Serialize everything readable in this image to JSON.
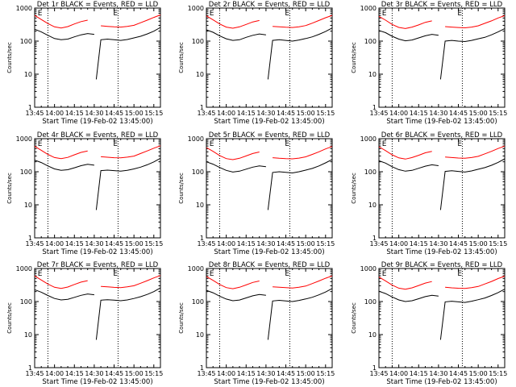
{
  "colors": {
    "events": "#000000",
    "lld": "#ff0000",
    "axes": "#000000",
    "background": "#ffffff"
  },
  "figure": {
    "xlabel": "Start Time (19-Feb-02 13:45:00)",
    "ylabel": "Counts/sec",
    "x_tick_labels": [
      "13:45",
      "14:00",
      "14:15",
      "14:30",
      "14:45",
      "15:00",
      "15:15"
    ],
    "y_tick_labels": [
      "1",
      "10",
      "100",
      "1000"
    ],
    "marker_left": "E",
    "marker_right": "E"
  },
  "chart_data": [
    {
      "type": "line",
      "title": "Det 1r BLACK = Events, RED = LLD",
      "x_unit": "minutes since 13:45",
      "xlim": [
        0,
        95
      ],
      "ylim": [
        1,
        1000
      ],
      "y_scale": "log",
      "grid": false,
      "legend": "in title",
      "vlines": [
        10,
        63
      ],
      "event_lines": [
        4,
        61
      ],
      "series": [
        {
          "name": "Events",
          "x": [
            0,
            5,
            10,
            15,
            20,
            25,
            30,
            35,
            40,
            45,
            46,
            46.5,
            50,
            55,
            60,
            65,
            70,
            75,
            80,
            85,
            90,
            95
          ],
          "y": [
            230,
            190,
            150,
            120,
            110,
            115,
            135,
            155,
            170,
            160,
            null,
            7,
            110,
            115,
            110,
            105,
            112,
            125,
            140,
            165,
            200,
            260
          ]
        },
        {
          "name": "LLD",
          "x": [
            0,
            5,
            10,
            15,
            20,
            25,
            30,
            35,
            40,
            46,
            50,
            55,
            60,
            65,
            70,
            75,
            80,
            85,
            90,
            95
          ],
          "y": [
            600,
            450,
            340,
            270,
            250,
            275,
            330,
            390,
            430,
            null,
            290,
            280,
            270,
            265,
            280,
            300,
            360,
            430,
            520,
            620
          ]
        }
      ]
    },
    {
      "type": "line",
      "title": "Det 2r BLACK = Events, RED = LLD",
      "x_unit": "minutes since 13:45",
      "xlim": [
        0,
        95
      ],
      "ylim": [
        1,
        1000
      ],
      "y_scale": "log",
      "grid": false,
      "legend": "in title",
      "vlines": [
        10,
        63
      ],
      "event_lines": [
        4,
        61
      ],
      "series": [
        {
          "name": "Events",
          "x": [
            0,
            5,
            10,
            15,
            20,
            25,
            30,
            35,
            40,
            45,
            46,
            46.5,
            50,
            55,
            60,
            65,
            70,
            75,
            80,
            85,
            90,
            95
          ],
          "y": [
            220,
            185,
            145,
            118,
            105,
            110,
            130,
            150,
            165,
            155,
            null,
            7,
            105,
            110,
            105,
            100,
            108,
            120,
            135,
            160,
            195,
            250
          ]
        },
        {
          "name": "LLD",
          "x": [
            0,
            5,
            10,
            15,
            20,
            25,
            30,
            35,
            40,
            46,
            50,
            55,
            60,
            65,
            70,
            75,
            80,
            85,
            90,
            95
          ],
          "y": [
            580,
            440,
            330,
            265,
            245,
            270,
            320,
            380,
            420,
            null,
            280,
            270,
            262,
            258,
            270,
            295,
            350,
            420,
            510,
            600
          ]
        }
      ]
    },
    {
      "type": "line",
      "title": "Det 3r BLACK = Events, RED = LLD",
      "x_unit": "minutes since 13:45",
      "xlim": [
        0,
        95
      ],
      "ylim": [
        1,
        1000
      ],
      "y_scale": "log",
      "grid": false,
      "legend": "in title",
      "vlines": [
        10,
        63
      ],
      "event_lines": [
        4,
        61
      ],
      "series": [
        {
          "name": "Events",
          "x": [
            0,
            5,
            10,
            15,
            20,
            25,
            30,
            35,
            40,
            45,
            46,
            46.5,
            50,
            55,
            60,
            65,
            70,
            75,
            80,
            85,
            90,
            95
          ],
          "y": [
            210,
            180,
            140,
            115,
            102,
            108,
            125,
            145,
            160,
            150,
            null,
            7,
            100,
            105,
            100,
            97,
            105,
            118,
            130,
            155,
            190,
            240
          ]
        },
        {
          "name": "LLD",
          "x": [
            0,
            5,
            10,
            15,
            20,
            25,
            30,
            35,
            40,
            46,
            50,
            55,
            60,
            65,
            70,
            75,
            80,
            85,
            90,
            95
          ],
          "y": [
            560,
            430,
            320,
            260,
            240,
            265,
            310,
            370,
            410,
            null,
            275,
            265,
            258,
            252,
            265,
            290,
            345,
            410,
            500,
            590
          ]
        }
      ]
    },
    {
      "type": "line",
      "title": "Det 4r BLACK = Events, RED = LLD",
      "x_unit": "minutes since 13:45",
      "xlim": [
        0,
        95
      ],
      "ylim": [
        1,
        1000
      ],
      "y_scale": "log",
      "grid": false,
      "legend": "in title",
      "vlines": [
        10,
        63
      ],
      "event_lines": [
        4,
        61
      ],
      "series": [
        {
          "name": "Events",
          "x": [
            0,
            5,
            10,
            15,
            20,
            25,
            30,
            35,
            40,
            45,
            46,
            46.5,
            50,
            55,
            60,
            65,
            70,
            75,
            80,
            85,
            90,
            95
          ],
          "y": [
            225,
            190,
            150,
            122,
            110,
            115,
            132,
            152,
            168,
            158,
            null,
            7,
            108,
            112,
            108,
            104,
            110,
            122,
            138,
            162,
            198,
            255
          ]
        },
        {
          "name": "LLD",
          "x": [
            0,
            5,
            10,
            15,
            20,
            25,
            30,
            35,
            40,
            46,
            50,
            55,
            60,
            65,
            70,
            75,
            80,
            85,
            90,
            95
          ],
          "y": [
            590,
            445,
            335,
            268,
            248,
            272,
            325,
            385,
            425,
            null,
            285,
            275,
            266,
            262,
            276,
            298,
            355,
            425,
            515,
            610
          ]
        }
      ]
    },
    {
      "type": "line",
      "title": "Det 5r BLACK = Events, RED = LLD",
      "x_unit": "minutes since 13:45",
      "xlim": [
        0,
        95
      ],
      "ylim": [
        1,
        1000
      ],
      "y_scale": "log",
      "grid": false,
      "legend": "in title",
      "vlines": [
        10,
        63
      ],
      "event_lines": [
        4,
        61
      ],
      "series": [
        {
          "name": "Events",
          "x": [
            0,
            5,
            10,
            15,
            20,
            25,
            30,
            35,
            40,
            45,
            46,
            46.5,
            50,
            55,
            60,
            65,
            70,
            75,
            80,
            85,
            90,
            95
          ],
          "y": [
            200,
            170,
            135,
            110,
            98,
            104,
            120,
            138,
            150,
            142,
            null,
            7,
            95,
            100,
            96,
            92,
            100,
            112,
            126,
            150,
            185,
            235
          ]
        },
        {
          "name": "LLD",
          "x": [
            0,
            5,
            10,
            15,
            20,
            25,
            30,
            35,
            40,
            46,
            50,
            55,
            60,
            65,
            70,
            75,
            80,
            85,
            90,
            95
          ],
          "y": [
            540,
            415,
            310,
            250,
            232,
            256,
            300,
            355,
            395,
            null,
            265,
            256,
            248,
            245,
            258,
            282,
            335,
            400,
            490,
            580
          ]
        }
      ]
    },
    {
      "type": "line",
      "title": "Det 6r BLACK = Events, RED = LLD",
      "x_unit": "minutes since 13:45",
      "xlim": [
        0,
        95
      ],
      "ylim": [
        1,
        1000
      ],
      "y_scale": "log",
      "grid": false,
      "legend": "in title",
      "vlines": [
        10,
        63
      ],
      "event_lines": [
        4,
        61
      ],
      "series": [
        {
          "name": "Events",
          "x": [
            0,
            5,
            10,
            15,
            20,
            25,
            30,
            35,
            40,
            45,
            46,
            46.5,
            50,
            55,
            60,
            65,
            70,
            75,
            80,
            85,
            90,
            95
          ],
          "y": [
            215,
            182,
            142,
            116,
            104,
            110,
            127,
            147,
            162,
            152,
            null,
            7,
            102,
            107,
            102,
            98,
            106,
            119,
            133,
            157,
            192,
            245
          ]
        },
        {
          "name": "LLD",
          "x": [
            0,
            5,
            10,
            15,
            20,
            25,
            30,
            35,
            40,
            46,
            50,
            55,
            60,
            65,
            70,
            75,
            80,
            85,
            90,
            95
          ],
          "y": [
            570,
            435,
            325,
            262,
            242,
            268,
            315,
            375,
            415,
            null,
            278,
            268,
            260,
            255,
            268,
            292,
            348,
            415,
            505,
            595
          ]
        }
      ]
    },
    {
      "type": "line",
      "title": "Det 7r BLACK = Events, RED = LLD",
      "x_unit": "minutes since 13:45",
      "xlim": [
        0,
        95
      ],
      "ylim": [
        1,
        1000
      ],
      "y_scale": "log",
      "grid": false,
      "legend": "in title",
      "vlines": [
        10,
        63
      ],
      "event_lines": [
        4,
        61
      ],
      "series": [
        {
          "name": "Events",
          "x": [
            0,
            5,
            10,
            15,
            20,
            25,
            30,
            35,
            40,
            45,
            46,
            46.5,
            50,
            55,
            60,
            65,
            70,
            75,
            80,
            85,
            90,
            95
          ],
          "y": [
            228,
            192,
            152,
            124,
            112,
            117,
            134,
            154,
            170,
            160,
            null,
            7,
            110,
            114,
            110,
            106,
            112,
            124,
            140,
            164,
            200,
            258
          ]
        },
        {
          "name": "LLD",
          "x": [
            0,
            5,
            10,
            15,
            20,
            25,
            30,
            35,
            40,
            46,
            50,
            55,
            60,
            65,
            70,
            75,
            80,
            85,
            90,
            95
          ],
          "y": [
            595,
            448,
            338,
            270,
            250,
            275,
            328,
            388,
            428,
            null,
            288,
            278,
            268,
            264,
            278,
            300,
            358,
            428,
            518,
            615
          ]
        }
      ]
    },
    {
      "type": "line",
      "title": "Det 8r BLACK = Events, RED = LLD",
      "x_unit": "minutes since 13:45",
      "xlim": [
        0,
        95
      ],
      "ylim": [
        1,
        1000
      ],
      "y_scale": "log",
      "grid": false,
      "legend": "in title",
      "vlines": [
        10,
        63
      ],
      "event_lines": [
        4,
        61
      ],
      "series": [
        {
          "name": "Events",
          "x": [
            0,
            5,
            10,
            15,
            20,
            25,
            30,
            35,
            40,
            45,
            46,
            46.5,
            50,
            55,
            60,
            65,
            70,
            75,
            80,
            85,
            90,
            95
          ],
          "y": [
            218,
            184,
            146,
            119,
            106,
            111,
            129,
            149,
            164,
            154,
            null,
            7,
            104,
            109,
            104,
            100,
            108,
            120,
            135,
            159,
            194,
            248
          ]
        },
        {
          "name": "LLD",
          "x": [
            0,
            5,
            10,
            15,
            20,
            25,
            30,
            35,
            40,
            46,
            50,
            55,
            60,
            65,
            70,
            75,
            80,
            85,
            90,
            95
          ],
          "y": [
            575,
            438,
            328,
            264,
            244,
            270,
            318,
            378,
            418,
            null,
            280,
            270,
            262,
            257,
            270,
            294,
            350,
            418,
            508,
            598
          ]
        }
      ]
    },
    {
      "type": "line",
      "title": "Det 9r BLACK = Events, RED = LLD",
      "x_unit": "minutes since 13:45",
      "xlim": [
        0,
        95
      ],
      "ylim": [
        1,
        1000
      ],
      "y_scale": "log",
      "grid": false,
      "legend": "in title",
      "vlines": [
        10,
        63
      ],
      "event_lines": [
        4,
        61
      ],
      "series": [
        {
          "name": "Events",
          "x": [
            0,
            5,
            10,
            15,
            20,
            25,
            30,
            35,
            40,
            45,
            46,
            46.5,
            50,
            55,
            60,
            65,
            70,
            75,
            80,
            85,
            90,
            95
          ],
          "y": [
            205,
            174,
            138,
            112,
            100,
            106,
            122,
            141,
            155,
            146,
            null,
            7,
            98,
            102,
            98,
            94,
            102,
            114,
            128,
            152,
            186,
            238
          ]
        },
        {
          "name": "LLD",
          "x": [
            0,
            5,
            10,
            15,
            20,
            25,
            30,
            35,
            40,
            46,
            50,
            55,
            60,
            65,
            70,
            75,
            80,
            85,
            90,
            95
          ],
          "y": [
            550,
            420,
            315,
            254,
            236,
            260,
            305,
            362,
            402,
            null,
            270,
            260,
            252,
            248,
            262,
            286,
            340,
            405,
            495,
            585
          ]
        }
      ]
    }
  ]
}
